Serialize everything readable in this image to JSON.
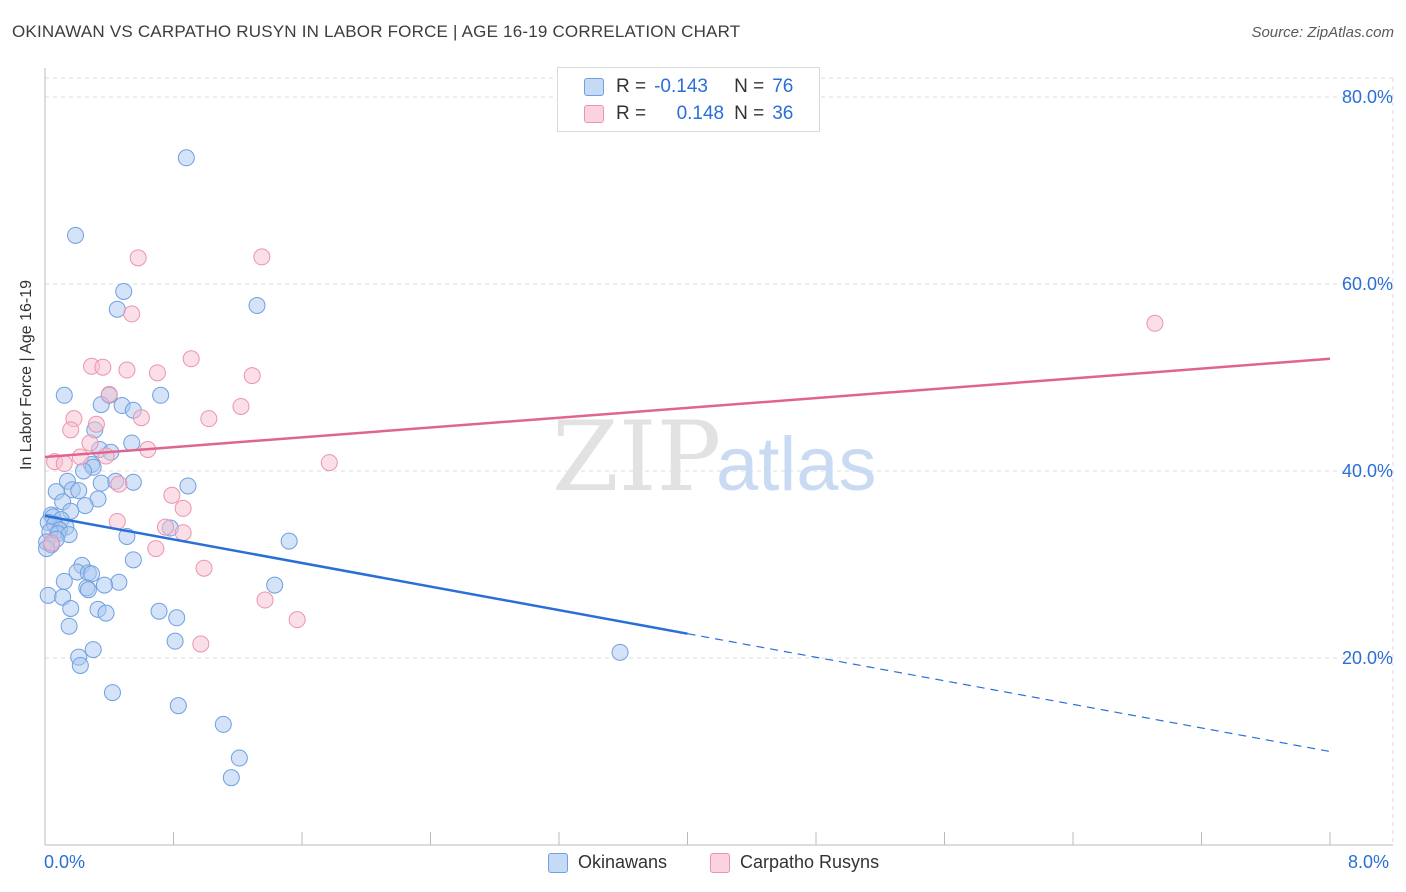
{
  "title": "OKINAWAN VS CARPATHO RUSYN IN LABOR FORCE | AGE 16-19 CORRELATION CHART",
  "source": "Source: ZipAtlas.com",
  "watermark": {
    "zip": "ZIP",
    "atlas": "atlas"
  },
  "legend": {
    "rows": [
      {
        "r_label": "R =",
        "r_value": "-0.143",
        "n_label": "N =",
        "n_value": "76"
      },
      {
        "r_label": "R =",
        "r_value": "0.148",
        "n_label": "N =",
        "n_value": "36"
      }
    ]
  },
  "bottom_legend": [
    "Okinawans",
    "Carpatho Rusyns"
  ],
  "colors": {
    "blue_fill": "#a9c8f0",
    "blue_stroke": "#6fa0e0",
    "blue_line": "#2a6fd6",
    "pink_fill": "#f7bfd0",
    "pink_stroke": "#ec93b0",
    "pink_line": "#e0658e",
    "accent_text": "#2a6fd6",
    "grid": "#dcdcdc"
  },
  "chart_data": {
    "type": "scatter",
    "title": "OKINAWAN VS CARPATHO RUSYN IN LABOR FORCE | AGE 16-19 CORRELATION CHART",
    "xlabel": "",
    "ylabel": "In Labor Force | Age 16-19",
    "xlim": [
      0,
      8
    ],
    "ylim": [
      0,
      80
    ],
    "x_tick_labels": [
      "0.0%",
      "8.0%"
    ],
    "y_ticks": [
      20,
      40,
      60,
      80
    ],
    "y_tick_labels": [
      "20.0%",
      "40.0%",
      "60.0%",
      "80.0%"
    ],
    "grid": true,
    "series": [
      {
        "name": "Okinawans",
        "color": "blue",
        "trend": {
          "x0": 0.0,
          "y0": 35.2,
          "x1": 4.0,
          "y1": 22.6,
          "dash_to_x": 8.0,
          "dash_to_y": 10.0
        },
        "points": [
          [
            0.88,
            73.5
          ],
          [
            0.19,
            65.2
          ],
          [
            0.49,
            59.2
          ],
          [
            0.45,
            57.3
          ],
          [
            1.32,
            57.7
          ],
          [
            0.12,
            48.1
          ],
          [
            0.72,
            48.1
          ],
          [
            0.4,
            48.1
          ],
          [
            0.35,
            47.1
          ],
          [
            0.48,
            47.0
          ],
          [
            0.55,
            46.5
          ],
          [
            0.31,
            44.4
          ],
          [
            0.54,
            43.0
          ],
          [
            0.34,
            42.3
          ],
          [
            0.41,
            42.0
          ],
          [
            0.29,
            40.7
          ],
          [
            0.3,
            40.4
          ],
          [
            0.24,
            40.0
          ],
          [
            0.14,
            38.9
          ],
          [
            0.44,
            38.9
          ],
          [
            0.55,
            38.8
          ],
          [
            0.89,
            38.4
          ],
          [
            0.17,
            38.0
          ],
          [
            0.07,
            37.8
          ],
          [
            0.21,
            37.9
          ],
          [
            0.33,
            37.0
          ],
          [
            0.11,
            36.7
          ],
          [
            0.25,
            36.3
          ],
          [
            0.16,
            35.7
          ],
          [
            0.04,
            35.3
          ],
          [
            0.05,
            35.1
          ],
          [
            0.1,
            34.8
          ],
          [
            0.02,
            34.5
          ],
          [
            0.06,
            34.3
          ],
          [
            0.13,
            34.0
          ],
          [
            0.09,
            33.7
          ],
          [
            0.03,
            33.5
          ],
          [
            0.08,
            33.3
          ],
          [
            0.15,
            33.2
          ],
          [
            0.51,
            33.0
          ],
          [
            0.07,
            32.7
          ],
          [
            0.01,
            32.4
          ],
          [
            0.04,
            32.1
          ],
          [
            0.01,
            31.7
          ],
          [
            0.78,
            33.9
          ],
          [
            1.52,
            32.5
          ],
          [
            0.55,
            30.5
          ],
          [
            0.23,
            29.9
          ],
          [
            0.2,
            29.2
          ],
          [
            0.27,
            29.1
          ],
          [
            0.29,
            29.0
          ],
          [
            0.12,
            28.2
          ],
          [
            0.46,
            28.1
          ],
          [
            0.37,
            27.8
          ],
          [
            0.26,
            27.5
          ],
          [
            0.27,
            27.3
          ],
          [
            1.43,
            27.8
          ],
          [
            0.02,
            26.7
          ],
          [
            0.11,
            26.5
          ],
          [
            0.16,
            25.3
          ],
          [
            0.33,
            25.2
          ],
          [
            0.38,
            24.8
          ],
          [
            0.71,
            25.0
          ],
          [
            0.82,
            24.3
          ],
          [
            0.15,
            23.4
          ],
          [
            0.3,
            20.9
          ],
          [
            0.81,
            21.8
          ],
          [
            0.21,
            20.1
          ],
          [
            0.22,
            19.2
          ],
          [
            0.42,
            16.3
          ],
          [
            0.83,
            14.9
          ],
          [
            1.11,
            12.9
          ],
          [
            1.21,
            9.3
          ],
          [
            1.16,
            7.2
          ],
          [
            3.58,
            20.6
          ],
          [
            0.35,
            38.7
          ]
        ]
      },
      {
        "name": "Carpatho Rusyns",
        "color": "pink",
        "trend": {
          "x0": 0.0,
          "y0": 41.5,
          "x1": 8.0,
          "y1": 52.0
        },
        "points": [
          [
            0.58,
            62.8
          ],
          [
            1.35,
            62.9
          ],
          [
            0.54,
            56.8
          ],
          [
            6.91,
            55.8
          ],
          [
            0.91,
            52.0
          ],
          [
            0.29,
            51.2
          ],
          [
            0.36,
            51.1
          ],
          [
            0.51,
            50.8
          ],
          [
            0.7,
            50.5
          ],
          [
            1.29,
            50.2
          ],
          [
            0.4,
            48.2
          ],
          [
            1.22,
            46.9
          ],
          [
            0.6,
            45.7
          ],
          [
            1.02,
            45.6
          ],
          [
            0.18,
            45.6
          ],
          [
            0.32,
            45.0
          ],
          [
            0.16,
            44.4
          ],
          [
            0.28,
            43.0
          ],
          [
            0.64,
            42.3
          ],
          [
            0.38,
            41.6
          ],
          [
            0.22,
            41.5
          ],
          [
            0.06,
            41.0
          ],
          [
            0.12,
            40.8
          ],
          [
            1.77,
            40.9
          ],
          [
            0.46,
            38.6
          ],
          [
            0.79,
            37.4
          ],
          [
            0.86,
            36.0
          ],
          [
            0.45,
            34.6
          ],
          [
            0.75,
            34.0
          ],
          [
            0.86,
            33.4
          ],
          [
            0.69,
            31.7
          ],
          [
            0.99,
            29.6
          ],
          [
            0.04,
            32.3
          ],
          [
            1.37,
            26.2
          ],
          [
            1.57,
            24.1
          ],
          [
            0.97,
            21.5
          ]
        ]
      }
    ]
  }
}
